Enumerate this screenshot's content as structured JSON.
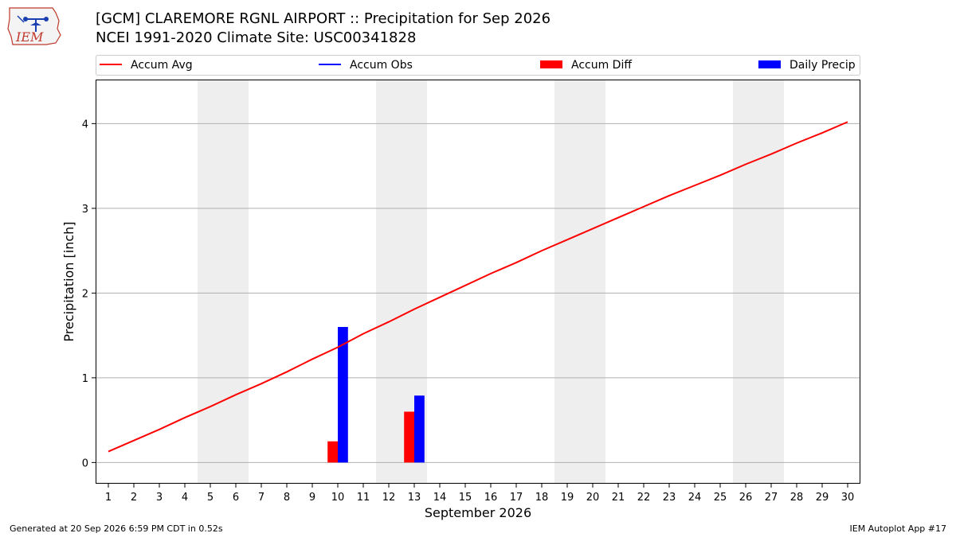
{
  "header": {
    "title_line1": "[GCM] CLAREMORE RGNL AIRPORT :: Precipitation for Sep 2026",
    "title_line2": "NCEI 1991-2020 Climate Site: USC00341828",
    "logo_text": "IEM"
  },
  "footer": {
    "generated": "Generated at 20 Sep 2026 6:59 PM CDT in 0.52s",
    "app": "IEM Autoplot App #17"
  },
  "colors": {
    "accum_avg": "#ff0000",
    "accum_obs": "#0000ff",
    "accum_diff": "#ff0000",
    "daily_precip": "#0000ff",
    "weekend_shade": "#eeeeee",
    "grid": "#b0b0b0"
  },
  "chart_data": {
    "type": "bar",
    "xlabel": "September 2026",
    "ylabel": "Precipitation [inch]",
    "xlim": [
      0.5,
      30.5
    ],
    "ylim": [
      -0.25,
      4.52
    ],
    "x_ticks": [
      1,
      2,
      3,
      4,
      5,
      6,
      7,
      8,
      9,
      10,
      11,
      12,
      13,
      14,
      15,
      16,
      17,
      18,
      19,
      20,
      21,
      22,
      23,
      24,
      25,
      26,
      27,
      28,
      29,
      30
    ],
    "y_ticks": [
      0,
      1,
      2,
      3,
      4
    ],
    "grid": "horizontal",
    "legend": {
      "placement": "top",
      "entries": [
        {
          "label": "Accum Avg",
          "kind": "line",
          "color": "#ff0000"
        },
        {
          "label": "Accum Obs",
          "kind": "line",
          "color": "#0000ff"
        },
        {
          "label": "Accum Diff",
          "kind": "bar",
          "color": "#ff0000"
        },
        {
          "label": "Daily Precip",
          "kind": "bar",
          "color": "#0000ff"
        }
      ]
    },
    "weekend_spans": [
      [
        4.5,
        6.5
      ],
      [
        11.5,
        13.5
      ],
      [
        18.5,
        20.5
      ],
      [
        25.5,
        27.5
      ]
    ],
    "accum_avg": {
      "name": "Accum Avg",
      "x": [
        1,
        2,
        3,
        4,
        5,
        6,
        7,
        8,
        9,
        10,
        11,
        12,
        13,
        14,
        15,
        16,
        17,
        18,
        19,
        20,
        21,
        22,
        23,
        24,
        25,
        26,
        27,
        28,
        29,
        30
      ],
      "y": [
        0.13,
        0.26,
        0.39,
        0.53,
        0.66,
        0.8,
        0.93,
        1.07,
        1.22,
        1.36,
        1.52,
        1.66,
        1.81,
        1.95,
        2.09,
        2.23,
        2.36,
        2.5,
        2.63,
        2.76,
        2.89,
        3.02,
        3.15,
        3.27,
        3.39,
        3.52,
        3.64,
        3.77,
        3.89,
        4.02
      ]
    },
    "accum_diff": {
      "name": "Accum Diff",
      "x": [
        10,
        13
      ],
      "y": [
        0.25,
        0.6
      ]
    },
    "daily_precip": {
      "name": "Daily Precip",
      "x": [
        10,
        13
      ],
      "y": [
        1.6,
        0.79
      ]
    }
  }
}
